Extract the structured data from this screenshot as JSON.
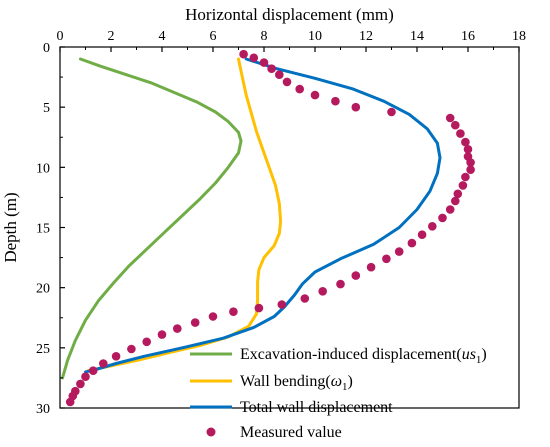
{
  "chart_data": {
    "type": "line",
    "xlabel": "Horizontal displacement (mm)",
    "ylabel": "Depth (m)",
    "xlim": [
      0,
      18
    ],
    "ylim": [
      0,
      30
    ],
    "x_ticks": [
      0,
      2,
      4,
      6,
      8,
      10,
      12,
      14,
      16,
      18
    ],
    "y_ticks": [
      0,
      5,
      10,
      15,
      20,
      25,
      30
    ],
    "x_axis_position": "top",
    "y_inverted": true,
    "grid": false,
    "legend_position": "bottom-right",
    "series": [
      {
        "name": "Excavation-induced displacement(us1)",
        "legend_main": "Excavation-induced displacement(",
        "legend_sym": "us",
        "legend_sub": "1",
        "legend_close": ")",
        "kind": "line",
        "color": "#70ad47",
        "points": [
          [
            0.8,
            1.0
          ],
          [
            1.6,
            1.6
          ],
          [
            2.6,
            2.3
          ],
          [
            3.6,
            3.0
          ],
          [
            4.5,
            3.8
          ],
          [
            5.4,
            4.6
          ],
          [
            6.1,
            5.4
          ],
          [
            6.6,
            6.2
          ],
          [
            7.0,
            7.1
          ],
          [
            7.1,
            7.8
          ],
          [
            7.0,
            8.8
          ],
          [
            6.6,
            10.0
          ],
          [
            6.1,
            11.3
          ],
          [
            5.5,
            12.6
          ],
          [
            4.8,
            14.0
          ],
          [
            4.1,
            15.4
          ],
          [
            3.4,
            16.8
          ],
          [
            2.7,
            18.2
          ],
          [
            2.1,
            19.6
          ],
          [
            1.5,
            21.1
          ],
          [
            1.0,
            22.7
          ],
          [
            0.6,
            24.4
          ],
          [
            0.3,
            26.0
          ],
          [
            0.1,
            27.5
          ]
        ]
      },
      {
        "name": "Wall bending(ω1)",
        "legend_main": "Wall bending(",
        "legend_sym": "ω",
        "legend_sub": "1",
        "legend_close": ")",
        "kind": "line",
        "color": "#ffc000",
        "points": [
          [
            7.0,
            1.0
          ],
          [
            7.15,
            2.5
          ],
          [
            7.3,
            4.0
          ],
          [
            7.5,
            5.5
          ],
          [
            7.7,
            7.0
          ],
          [
            7.95,
            8.5
          ],
          [
            8.2,
            10.0
          ],
          [
            8.45,
            11.5
          ],
          [
            8.6,
            13.0
          ],
          [
            8.65,
            14.5
          ],
          [
            8.6,
            15.5
          ],
          [
            8.4,
            16.5
          ],
          [
            8.0,
            17.5
          ],
          [
            7.8,
            18.5
          ],
          [
            7.75,
            19.5
          ],
          [
            7.75,
            21.0
          ],
          [
            7.7,
            22.2
          ],
          [
            7.4,
            23.2
          ],
          [
            6.6,
            24.1
          ],
          [
            5.5,
            24.8
          ],
          [
            4.3,
            25.4
          ],
          [
            3.1,
            26.0
          ],
          [
            2.0,
            26.5
          ],
          [
            1.1,
            26.9
          ]
        ]
      },
      {
        "name": "Total wall displacement",
        "legend_main": "Total wall displacement",
        "legend_sym": "",
        "legend_sub": "",
        "legend_close": "",
        "kind": "line",
        "color": "#0070c0",
        "points": [
          [
            7.3,
            1.0
          ],
          [
            8.5,
            1.8
          ],
          [
            10.0,
            2.6
          ],
          [
            11.5,
            3.5
          ],
          [
            12.7,
            4.5
          ],
          [
            13.7,
            5.6
          ],
          [
            14.4,
            6.8
          ],
          [
            14.8,
            8.0
          ],
          [
            14.9,
            9.2
          ],
          [
            14.8,
            10.5
          ],
          [
            14.5,
            12.0
          ],
          [
            14.0,
            13.5
          ],
          [
            13.3,
            15.0
          ],
          [
            12.3,
            16.4
          ],
          [
            11.0,
            17.6
          ],
          [
            10.0,
            18.7
          ],
          [
            9.5,
            19.7
          ],
          [
            9.2,
            20.6
          ],
          [
            8.8,
            21.6
          ],
          [
            8.4,
            22.4
          ],
          [
            7.6,
            23.3
          ],
          [
            6.4,
            24.2
          ],
          [
            4.8,
            25.0
          ],
          [
            3.3,
            25.7
          ],
          [
            2.2,
            26.3
          ],
          [
            1.4,
            26.8
          ],
          [
            1.0,
            27.0
          ]
        ]
      },
      {
        "name": "Measured value",
        "legend_main": "Measured value",
        "legend_sym": "",
        "legend_sub": "",
        "legend_close": "",
        "kind": "scatter",
        "color": "#b5195e",
        "points": [
          [
            7.2,
            0.6
          ],
          [
            7.6,
            0.9
          ],
          [
            8.0,
            1.3
          ],
          [
            8.3,
            1.8
          ],
          [
            8.6,
            2.3
          ],
          [
            8.9,
            2.9
          ],
          [
            9.4,
            3.5
          ],
          [
            10.0,
            4.0
          ],
          [
            10.8,
            4.5
          ],
          [
            11.6,
            5.0
          ],
          [
            13.0,
            5.4
          ],
          [
            15.3,
            5.9
          ],
          [
            15.5,
            6.5
          ],
          [
            15.7,
            7.2
          ],
          [
            15.9,
            7.9
          ],
          [
            16.0,
            8.5
          ],
          [
            16.0,
            9.1
          ],
          [
            16.1,
            9.6
          ],
          [
            16.1,
            10.2
          ],
          [
            15.9,
            10.8
          ],
          [
            15.8,
            11.5
          ],
          [
            15.6,
            12.2
          ],
          [
            15.5,
            12.8
          ],
          [
            15.3,
            13.5
          ],
          [
            15.0,
            14.2
          ],
          [
            14.6,
            14.9
          ],
          [
            14.2,
            15.6
          ],
          [
            13.8,
            16.3
          ],
          [
            13.3,
            17.0
          ],
          [
            12.8,
            17.6
          ],
          [
            12.2,
            18.3
          ],
          [
            11.6,
            19.0
          ],
          [
            11.0,
            19.7
          ],
          [
            10.3,
            20.3
          ],
          [
            9.6,
            20.9
          ],
          [
            8.7,
            21.4
          ],
          [
            7.8,
            21.7
          ],
          [
            6.8,
            22.0
          ],
          [
            6.0,
            22.4
          ],
          [
            5.3,
            22.9
          ],
          [
            4.6,
            23.4
          ],
          [
            4.0,
            23.9
          ],
          [
            3.4,
            24.5
          ],
          [
            2.8,
            25.1
          ],
          [
            2.2,
            25.7
          ],
          [
            1.7,
            26.3
          ],
          [
            1.3,
            26.9
          ],
          [
            1.0,
            27.4
          ],
          [
            0.8,
            28.0
          ],
          [
            0.6,
            28.6
          ],
          [
            0.5,
            29.0
          ],
          [
            0.4,
            29.5
          ]
        ]
      }
    ]
  }
}
